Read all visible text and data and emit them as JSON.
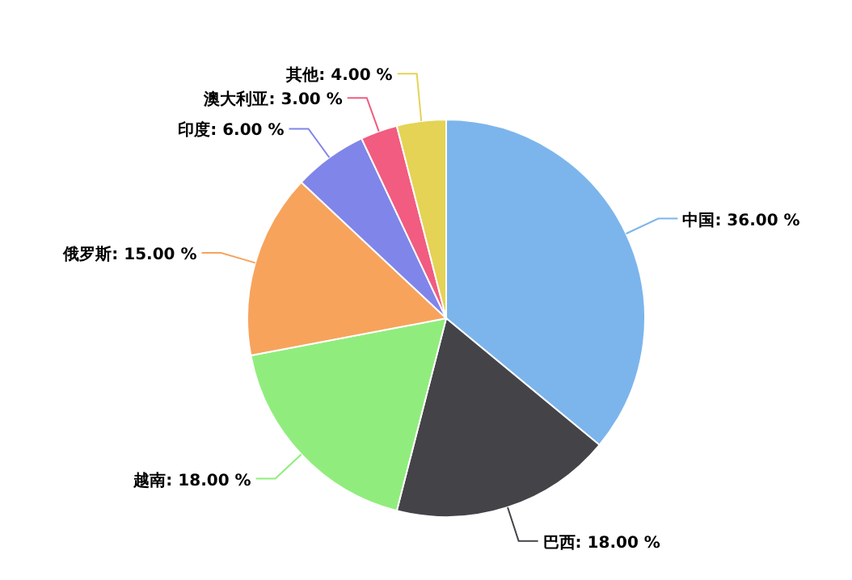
{
  "chart_data": {
    "type": "pie",
    "categories": [
      "中国",
      "巴西",
      "越南",
      "俄罗斯",
      "印度",
      "澳大利亚",
      "其他"
    ],
    "values": [
      36,
      18,
      18,
      15,
      6,
      3,
      4
    ],
    "colors": [
      "#7cb5ec",
      "#434348",
      "#90ed7d",
      "#f7a35c",
      "#8085e9",
      "#f15c80",
      "#e4d354"
    ],
    "value_labels": [
      "36.00 %",
      "18.00 %",
      "18.00 %",
      "15.00 %",
      "6.00 %",
      "3.00 %",
      "4.00 %"
    ]
  }
}
